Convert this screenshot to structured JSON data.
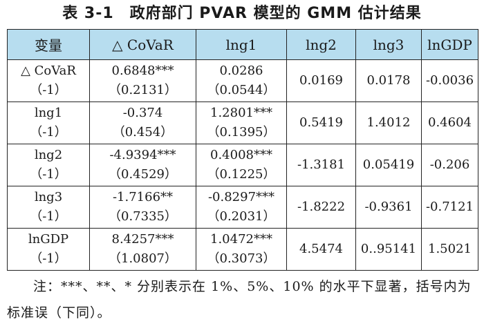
{
  "title": "表 3-1　政府部门 PVAR 模型的 GMM 估计结果",
  "table": {
    "headers": [
      "变量",
      "△ CoVaR",
      "lng1",
      "lng2",
      "lng3",
      "lnGDP"
    ],
    "rows": [
      {
        "var": [
          "△ CoVaR",
          "（-1）"
        ],
        "covar": [
          "0.6848***",
          "（0.2131）"
        ],
        "lng1": [
          "0.0286",
          "（0.0544）"
        ],
        "lng2": "0.0169",
        "lng3": "0.0178",
        "lngdp": "-0.0036"
      },
      {
        "var": [
          "lng1",
          "（-1）"
        ],
        "covar": [
          "-0.374",
          "（0.454）"
        ],
        "lng1": [
          "1.2801***",
          "（0.1395）"
        ],
        "lng2": "0.5419",
        "lng3": "1.4012",
        "lngdp": "0.4604"
      },
      {
        "var": [
          "lng2",
          "（-1）"
        ],
        "covar": [
          "-4.9394***",
          "（0.4529）"
        ],
        "lng1": [
          "0.4008***",
          "（0.1225）"
        ],
        "lng2": "-1.3181",
        "lng3": "0.05419",
        "lngdp": "-0.206"
      },
      {
        "var": [
          "lng3",
          "（-1）"
        ],
        "covar": [
          "-1.7166**",
          "（0.7335）"
        ],
        "lng1": [
          "-0.8297***",
          "（0.2031）"
        ],
        "lng2": "-1.8222",
        "lng3": "-0.9361",
        "lngdp": "-0.7121"
      },
      {
        "var": [
          "lnGDP",
          "（-1）"
        ],
        "covar": [
          "8.4257***",
          "（1.0807）"
        ],
        "lng1": [
          "1.0472***",
          "（0.3073）"
        ],
        "lng2": "4.5474",
        "lng3": "0..95141",
        "lngdp": "1.5021"
      }
    ]
  },
  "note": "注：***、**、* 分别表示在 1%、5%、10% 的水平下显著，括号内为标准误（下同）。",
  "colors": {
    "header_bg": "#b7ddef",
    "border": "#222222",
    "text": "#1a1a1a"
  }
}
